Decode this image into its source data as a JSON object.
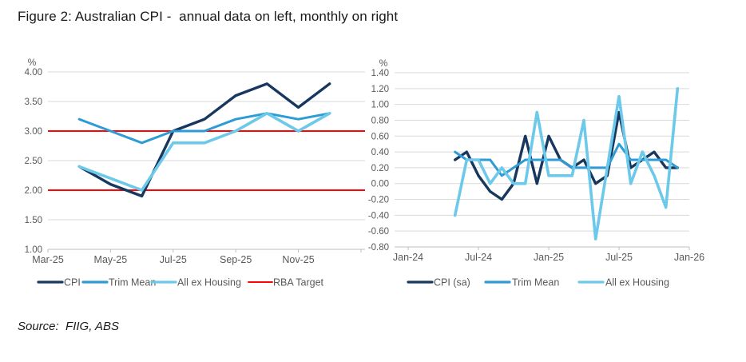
{
  "title": "Figure 2: Australian CPI -  annual data on left, monthly on right",
  "source": "Source:  FIIG, ABS",
  "colors": {
    "cpi": "#17375e",
    "trim_mean": "#2e9bd5",
    "all_ex_housing": "#6cc9ea",
    "rba_target": "#fe0505",
    "grid": "#d9d9d9",
    "axis": "#bfbfbf",
    "tick_text": "#595959",
    "legend_text": "#595959"
  },
  "chart_data": [
    {
      "id": "annual",
      "type": "line",
      "description": "Australian CPI annual (year-ended) inflation rates, monthly points",
      "unit": "%",
      "categories": [
        "Apr-25",
        "May-25",
        "Jun-25",
        "Jul-25",
        "Aug-25",
        "Sep-25",
        "Oct-25",
        "Nov-25",
        "Dec-25"
      ],
      "first_data_month": 1,
      "xlim_months": [
        0,
        10.13
      ],
      "x_tick_months": [
        0,
        2,
        4,
        6,
        8
      ],
      "x_minor_tick_months": [
        10
      ],
      "x_tick_labels": [
        "Mar-25",
        "May-25",
        "Jul-25",
        "Sep-25",
        "Nov-25"
      ],
      "ylim": [
        1.0,
        4.0
      ],
      "y_ticks": [
        1.0,
        1.5,
        2.0,
        2.5,
        3.0,
        3.5,
        4.0
      ],
      "grid": true,
      "series": [
        {
          "name": "CPI",
          "color_key": "cpi",
          "values": [
            2.4,
            2.1,
            1.9,
            3.0,
            3.2,
            3.6,
            3.8,
            3.4,
            3.8
          ]
        },
        {
          "name": "Trim Mean",
          "color_key": "trim_mean",
          "values": [
            3.2,
            3.0,
            2.8,
            3.0,
            3.0,
            3.2,
            3.3,
            3.2,
            3.3
          ]
        },
        {
          "name": "All ex Housing",
          "color_key": "all_ex_housing",
          "values": [
            2.4,
            2.2,
            2.0,
            2.8,
            2.8,
            3.0,
            3.3,
            3.0,
            3.3
          ]
        }
      ],
      "reference_lines": [
        {
          "name": "RBA Target",
          "color_key": "rba_target",
          "values": [
            2.0,
            3.0
          ]
        }
      ],
      "legend": [
        "CPI",
        "Trim Mean",
        "All ex Housing",
        "RBA Target"
      ],
      "legend_position": "bottom"
    },
    {
      "id": "monthly",
      "type": "line",
      "description": "Australian CPI monthly % change",
      "unit": "%",
      "categories": [
        "May-24",
        "Jun-24",
        "Jul-24",
        "Aug-24",
        "Sep-24",
        "Oct-24",
        "Nov-24",
        "Dec-24",
        "Jan-25",
        "Feb-25",
        "Mar-25",
        "Apr-25",
        "May-25",
        "Jun-25",
        "Jul-25",
        "Aug-25",
        "Sep-25",
        "Oct-25",
        "Nov-25",
        "Dec-25"
      ],
      "first_data_month": 4,
      "xlim_months": [
        -1.16,
        24
      ],
      "x_tick_months": [
        0,
        6,
        12,
        18,
        24
      ],
      "x_minor_tick_months": [],
      "x_tick_labels": [
        "Jan-24",
        "Jul-24",
        "Jan-25",
        "Jul-25",
        "Jan-26"
      ],
      "ylim": [
        -0.8,
        1.4
      ],
      "y_ticks": [
        -0.8,
        -0.6,
        -0.4,
        -0.2,
        0.0,
        0.2,
        0.4,
        0.6,
        0.8,
        1.0,
        1.2,
        1.4
      ],
      "grid": true,
      "series": [
        {
          "name": "CPI (sa)",
          "color_key": "cpi",
          "values": [
            0.3,
            0.4,
            0.1,
            -0.1,
            -0.2,
            0.0,
            0.6,
            0.0,
            0.6,
            0.3,
            0.2,
            0.3,
            0.0,
            0.1,
            0.9,
            0.2,
            0.3,
            0.4,
            0.2,
            0.2
          ]
        },
        {
          "name": "Trim Mean",
          "color_key": "trim_mean",
          "values": [
            0.4,
            0.3,
            0.3,
            0.3,
            0.1,
            0.2,
            0.3,
            0.3,
            0.3,
            0.3,
            0.2,
            0.2,
            0.2,
            0.2,
            0.5,
            0.3,
            0.3,
            0.3,
            0.3,
            0.2
          ]
        },
        {
          "name": "All ex Housing",
          "color_key": "all_ex_housing",
          "values": [
            -0.4,
            0.3,
            0.3,
            0.0,
            0.2,
            0.0,
            0.0,
            0.9,
            0.1,
            0.1,
            0.1,
            0.8,
            -0.7,
            0.2,
            1.1,
            0.0,
            0.4,
            0.1,
            -0.3,
            1.2
          ]
        }
      ],
      "reference_lines": [],
      "legend": [
        "CPI (sa)",
        "Trim Mean",
        "All ex Housing"
      ],
      "legend_position": "bottom"
    }
  ]
}
